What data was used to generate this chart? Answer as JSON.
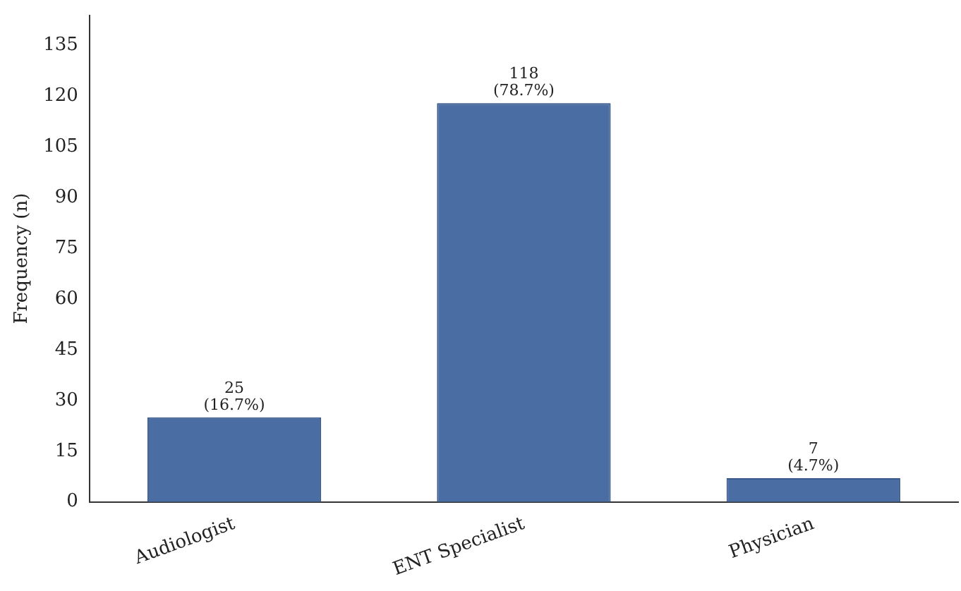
{
  "chart_data": {
    "type": "bar",
    "ylabel": "Frequency (n)",
    "categories": [
      "Audiologist",
      "ENT Specialist",
      "Physician"
    ],
    "values": [
      25,
      118,
      7
    ],
    "value_labels": [
      "25\n(16.7%)",
      "118\n(78.7%)",
      "7\n(4.7%)"
    ],
    "color": "#4a6da3",
    "ylim": [
      0,
      144
    ],
    "yticks": [
      0,
      15,
      30,
      45,
      60,
      75,
      90,
      105,
      120,
      135
    ],
    "grid": false,
    "legend": false
  }
}
